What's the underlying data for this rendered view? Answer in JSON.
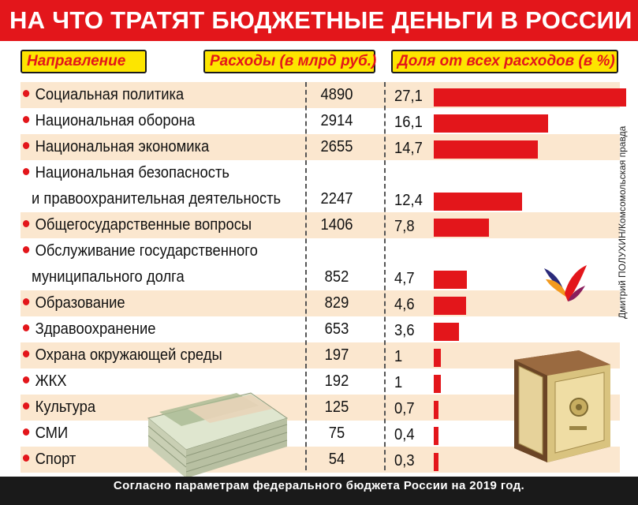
{
  "title": "НА ЧТО ТРАТЯТ БЮДЖЕТНЫЕ ДЕНЬГИ В РОССИИ",
  "headers": {
    "direction": "Направление",
    "spending": "Расходы (в млрд руб.)",
    "share": "Доля от всех расходов (в %)"
  },
  "footer": "Согласно параметрам федерального бюджета России на 2019 год.",
  "credit": "Дмитрий ПОЛУХИН/Комсомольская правда",
  "colors": {
    "accent": "#e3161b",
    "header_fill": "#fde500",
    "band": "#fbe7cf",
    "footer": "#1a1a1a"
  },
  "chart_data": {
    "type": "bar",
    "title": "НА ЧТО ТРАТЯТ БЮДЖЕТНЫЕ ДЕНЬГИ В РОССИИ",
    "categories": [
      [
        "Социальная политика"
      ],
      [
        "Национальная оборона"
      ],
      [
        "Национальная экономика"
      ],
      [
        "Национальная безопасность",
        "и правоохранительная деятельность"
      ],
      [
        "Общегосударственные вопросы"
      ],
      [
        "Обслуживание государственного",
        "муниципального долга"
      ],
      [
        "Образование"
      ],
      [
        "Здравоохранение"
      ],
      [
        "Охрана окружающей среды"
      ],
      [
        "ЖКХ"
      ],
      [
        "Культура"
      ],
      [
        "СМИ"
      ],
      [
        "Спорт"
      ]
    ],
    "spending_labels": [
      "4890",
      "2914",
      "2655",
      "2247",
      "1406",
      "852",
      "829",
      "653",
      "197",
      "192",
      "125",
      "75",
      "54"
    ],
    "spending": [
      4890,
      2914,
      2655,
      2247,
      1406,
      852,
      829,
      653,
      197,
      192,
      125,
      75,
      54
    ],
    "share_labels": [
      "27,1",
      "16,1",
      "14,7",
      "12,4",
      "7,8",
      "4,7",
      "4,6",
      "3,6",
      "1",
      "1",
      "0,7",
      "0,4",
      "0,3"
    ],
    "share": [
      27.1,
      16.1,
      14.7,
      12.4,
      7.8,
      4.7,
      4.6,
      3.6,
      1,
      1,
      0.7,
      0.4,
      0.3
    ],
    "xlim": [
      0,
      27.1
    ]
  }
}
